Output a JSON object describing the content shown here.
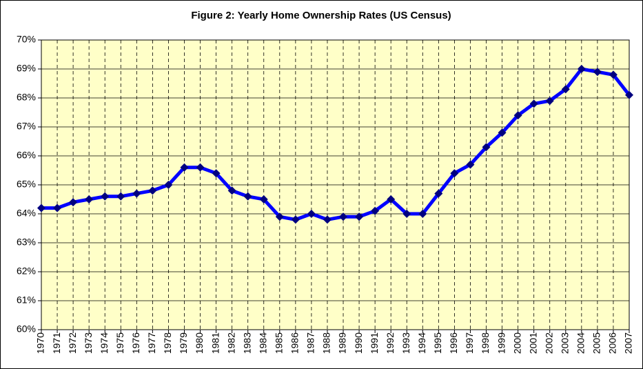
{
  "chart_data": {
    "type": "line",
    "title": "Figure 2: Yearly Home Ownership Rates (US Census)",
    "x": [
      1970,
      1971,
      1972,
      1973,
      1974,
      1975,
      1976,
      1977,
      1978,
      1979,
      1980,
      1981,
      1982,
      1983,
      1984,
      1985,
      1986,
      1987,
      1988,
      1989,
      1990,
      1991,
      1992,
      1993,
      1994,
      1995,
      1996,
      1997,
      1998,
      1999,
      2000,
      2001,
      2002,
      2003,
      2004,
      2005,
      2006,
      2007
    ],
    "series": [
      {
        "color": "#0000ff",
        "marker_color": "#000080",
        "values": [
          64.2,
          64.2,
          64.4,
          64.5,
          64.6,
          64.6,
          64.7,
          64.8,
          65.0,
          65.6,
          65.6,
          65.4,
          64.8,
          64.6,
          64.5,
          63.9,
          63.8,
          64.0,
          63.8,
          63.9,
          63.9,
          64.1,
          64.5,
          64.0,
          64.0,
          64.7,
          65.4,
          65.7,
          66.3,
          66.8,
          67.4,
          67.8,
          67.9,
          68.3,
          69.0,
          68.9,
          68.8,
          68.1
        ]
      }
    ],
    "xlim": [
      1970,
      2007
    ],
    "xticks": [
      1970,
      1971,
      1972,
      1973,
      1974,
      1975,
      1976,
      1977,
      1978,
      1979,
      1980,
      1981,
      1982,
      1983,
      1984,
      1985,
      1986,
      1987,
      1988,
      1989,
      1990,
      1991,
      1992,
      1993,
      1994,
      1995,
      1996,
      1997,
      1998,
      1999,
      2000,
      2001,
      2002,
      2003,
      2004,
      2005,
      2006,
      2007
    ],
    "ylim": [
      60,
      70
    ],
    "yticks": [
      {
        "value": 60,
        "label": "60%"
      },
      {
        "value": 61,
        "label": "61%"
      },
      {
        "value": 62,
        "label": "62%"
      },
      {
        "value": 63,
        "label": "63%"
      },
      {
        "value": 64,
        "label": "64%"
      },
      {
        "value": 65,
        "label": "65%"
      },
      {
        "value": 66,
        "label": "66%"
      },
      {
        "value": 67,
        "label": "67%"
      },
      {
        "value": 68,
        "label": "68%"
      },
      {
        "value": 69,
        "label": "69%"
      },
      {
        "value": 70,
        "label": "70%"
      }
    ],
    "grid": true,
    "background": "#ffffc8"
  }
}
